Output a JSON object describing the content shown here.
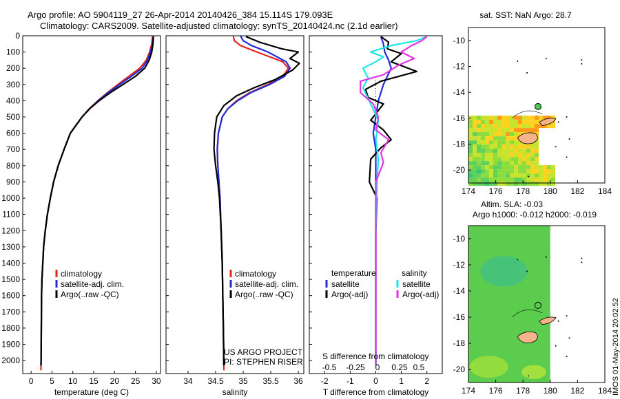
{
  "header": {
    "line1": "Argo profile: AO 5904119_27 26-Apr-2014 20140426_384 15.114S 179.093E",
    "line2": "Climatology: CARS2009. Satellite-adjusted climatology: synTS_20140424.nc (2.1d earlier)"
  },
  "side_stamp": "IMOS 01-May-2014 20:02:52",
  "colors": {
    "climatology": "#e8231b",
    "satellite": "#1f2bd9",
    "argo": "#000000",
    "satellite_salt": "#19e6e6",
    "argo_salt": "#e632e6"
  },
  "chart_data": [
    {
      "type": "line",
      "xlabel": "temperature (deg C)",
      "ylabel": "",
      "xlim": [
        -2,
        31
      ],
      "ylim": [
        2080,
        0
      ],
      "xticks": [
        0,
        5,
        10,
        15,
        20,
        25,
        30
      ],
      "yticks": [
        0,
        100,
        200,
        300,
        400,
        500,
        600,
        700,
        800,
        900,
        1000,
        1100,
        1200,
        1300,
        1400,
        1500,
        1600,
        1700,
        1800,
        1900,
        2000
      ],
      "legend": [
        "climatology",
        "satellite-adj. clim.",
        "Argo(..raw -QC)"
      ],
      "series": [
        {
          "name": "climatology",
          "color": "#e8231b",
          "x": [
            29.1,
            28.9,
            28.4,
            27.6,
            26.0,
            23.4,
            20.8,
            18.3,
            16.0,
            13.9,
            12.2,
            10.8,
            9.4,
            7.9,
            6.5,
            5.4,
            4.6,
            3.9,
            3.4,
            3.0,
            2.8,
            2.6,
            2.5,
            2.45,
            2.4,
            2.35
          ],
          "y": [
            0,
            50,
            100,
            150,
            200,
            250,
            300,
            350,
            400,
            450,
            500,
            550,
            600,
            700,
            800,
            900,
            1000,
            1100,
            1200,
            1300,
            1400,
            1500,
            1600,
            1800,
            2000,
            2060
          ]
        },
        {
          "name": "satellite-adj. clim.",
          "color": "#1f2bd9",
          "x": [
            29.3,
            29.1,
            28.6,
            27.9,
            26.6,
            24.0,
            21.2,
            18.5,
            16.1,
            14.0,
            12.2,
            10.8,
            9.4,
            7.9,
            6.5,
            5.4,
            4.6,
            3.9,
            3.4,
            3.0,
            2.8,
            2.6,
            2.5,
            2.45,
            2.4,
            2.35
          ],
          "y": [
            0,
            50,
            100,
            150,
            200,
            250,
            300,
            350,
            400,
            450,
            500,
            550,
            600,
            700,
            800,
            900,
            1000,
            1100,
            1200,
            1300,
            1400,
            1500,
            1600,
            1800,
            2000,
            2030
          ]
        },
        {
          "name": "Argo(..raw -QC)",
          "color": "#000000",
          "x": [
            29.3,
            29.2,
            28.9,
            28.3,
            27.2,
            25.0,
            22.0,
            19.0,
            16.3,
            14.0,
            12.2,
            10.8,
            9.4,
            7.9,
            6.5,
            5.4,
            4.6,
            3.9,
            3.4,
            3.0,
            2.8,
            2.6,
            2.5,
            2.45,
            2.4,
            2.35
          ],
          "y": [
            5,
            50,
            100,
            150,
            200,
            250,
            300,
            350,
            400,
            450,
            500,
            550,
            600,
            700,
            800,
            900,
            1000,
            1100,
            1200,
            1300,
            1400,
            1500,
            1600,
            1800,
            2000,
            2030
          ]
        }
      ]
    },
    {
      "type": "line",
      "xlabel": "salinity",
      "xlim": [
        33.6,
        36.1
      ],
      "ylim": [
        2080,
        0
      ],
      "xticks": [
        34,
        34.5,
        35,
        35.5,
        36
      ],
      "legend": [
        "climatology",
        "satellite-adj. clim.",
        "Argo(..raw -QC)"
      ],
      "annotations": [
        "US ARGO PROJECT",
        "PI: STEPHEN RISER"
      ],
      "series": [
        {
          "name": "climatology",
          "color": "#e8231b",
          "x": [
            34.82,
            34.84,
            34.95,
            35.25,
            35.72,
            35.82,
            35.72,
            35.45,
            35.12,
            34.88,
            34.72,
            34.62,
            34.55,
            34.53,
            34.54,
            34.56,
            34.58,
            34.6,
            34.62,
            34.63,
            34.64,
            34.65
          ],
          "y": [
            0,
            30,
            60,
            100,
            160,
            200,
            250,
            300,
            350,
            400,
            450,
            500,
            600,
            700,
            800,
            900,
            1000,
            1200,
            1400,
            1600,
            1800,
            2060
          ]
        },
        {
          "name": "satellite-adj. clim.",
          "color": "#1f2bd9",
          "x": [
            34.95,
            35.0,
            35.15,
            35.45,
            35.78,
            35.85,
            35.75,
            35.48,
            35.14,
            34.9,
            34.72,
            34.62,
            34.55,
            34.53,
            34.54,
            34.56,
            34.58,
            34.6,
            34.62,
            34.63,
            34.64,
            34.65
          ],
          "y": [
            0,
            30,
            60,
            100,
            160,
            200,
            250,
            300,
            350,
            400,
            450,
            500,
            600,
            700,
            800,
            900,
            1000,
            1200,
            1400,
            1600,
            1800,
            2030
          ]
        },
        {
          "name": "Argo(..raw -QC)",
          "color": "#000000",
          "x": [
            35.05,
            35.3,
            35.7,
            36.0,
            35.85,
            36.02,
            35.9,
            35.58,
            35.2,
            34.88,
            34.65,
            34.52,
            34.48,
            34.47,
            34.5,
            34.54,
            34.57,
            34.6,
            34.62,
            34.63,
            34.64,
            34.65
          ],
          "y": [
            5,
            40,
            80,
            100,
            140,
            170,
            210,
            270,
            320,
            370,
            430,
            500,
            600,
            700,
            800,
            900,
            1000,
            1200,
            1400,
            1600,
            1800,
            2030
          ]
        }
      ]
    },
    {
      "type": "line",
      "xlabel": "T difference from climatology",
      "xlabel_top": "S difference from climatology",
      "xlim": [
        -2.6,
        2.6
      ],
      "ylim": [
        2080,
        0
      ],
      "xticks": [
        -2,
        -1,
        0,
        1,
        2
      ],
      "xticks_top": [
        "-0.5",
        "-0.25",
        "0",
        "0.25",
        "0.5"
      ],
      "legend_titles": [
        "temperature",
        "salinity"
      ],
      "legend": [
        "satellite",
        "Argo(-adj)",
        "satellite",
        "Argo(-adj)"
      ],
      "series": [
        {
          "name": "temperature satellite",
          "color": "#1f2bd9",
          "x": [
            0.2,
            0.3,
            0.35,
            0.5,
            0.6,
            0.3,
            0.1,
            0.0,
            -0.1,
            0.0,
            0.0,
            0.0,
            0.0,
            0.0,
            0.0
          ],
          "y": [
            5,
            50,
            100,
            150,
            200,
            300,
            400,
            500,
            600,
            700,
            900,
            1100,
            1500,
            1800,
            2030
          ]
        },
        {
          "name": "temperature Argo(-adj)",
          "color": "#000000",
          "x": [
            0.2,
            0.5,
            0.45,
            1.0,
            0.6,
            1.6,
            0.2,
            -0.4,
            -0.3,
            0.3,
            0.05,
            -0.2,
            0.3,
            0.6,
            0.2,
            -0.2,
            -0.25,
            0.05,
            0.0,
            0.0,
            0.0,
            0.0
          ],
          "y": [
            5,
            40,
            80,
            110,
            160,
            220,
            280,
            330,
            380,
            420,
            470,
            520,
            580,
            640,
            690,
            760,
            900,
            1000,
            1200,
            1500,
            1800,
            2030
          ]
        },
        {
          "name": "salinity satellite",
          "color": "#19e6e6",
          "x": [
            2.0,
            1.6,
            0.6,
            -0.2,
            0.3,
            0.0,
            -0.5,
            -0.3,
            -0.5,
            -0.2,
            0.1,
            0.0,
            0.1,
            0.05,
            0.0,
            0.0
          ],
          "y": [
            5,
            30,
            60,
            100,
            130,
            160,
            200,
            260,
            320,
            420,
            520,
            640,
            760,
            900,
            1200,
            2030
          ]
        },
        {
          "name": "salinity Argo(-adj)",
          "color": "#e632e6",
          "x": [
            2.0,
            1.8,
            1.4,
            1.0,
            1.5,
            0.9,
            0.6,
            0.3,
            -0.6,
            -0.6,
            -0.1,
            0.1,
            0.0,
            0.5,
            0.2,
            0.3,
            0.0,
            0.0
          ],
          "y": [
            5,
            30,
            60,
            100,
            140,
            180,
            210,
            240,
            280,
            350,
            420,
            500,
            580,
            640,
            720,
            780,
            900,
            2030
          ]
        }
      ]
    },
    {
      "type": "heatmap",
      "title": "sat. SST: NaN Argo: 28.7",
      "xlim": [
        174,
        184
      ],
      "ylim": [
        -21,
        -9
      ],
      "xticks": [
        174,
        176,
        178,
        180,
        182,
        184
      ],
      "yticks": [
        -10,
        -12,
        -14,
        -16,
        -18,
        -20
      ],
      "argo_marker": {
        "lon": 179.1,
        "lat": -15.1,
        "value": 28.7
      }
    },
    {
      "type": "heatmap",
      "title": "Altim. SLA: -0.03",
      "subtitle": "Argo h1000: -0.012 h2000: -0.019",
      "xlim": [
        174,
        184
      ],
      "ylim": [
        -21,
        -9
      ],
      "xticks": [
        174,
        176,
        178,
        180,
        182,
        184
      ],
      "yticks": [
        -10,
        -12,
        -14,
        -16,
        -18,
        -20
      ],
      "argo_marker": {
        "lon": 179.1,
        "lat": -15.1
      }
    }
  ]
}
